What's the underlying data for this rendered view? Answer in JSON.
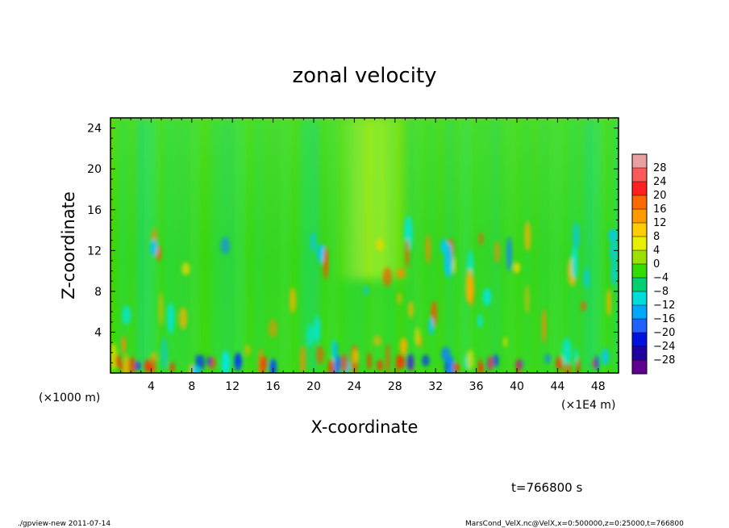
{
  "chart_data": {
    "type": "heatmap",
    "title": "zonal velocity",
    "xlabel": "X-coordinate",
    "ylabel": "Z-coordinate",
    "x_unit": "(×1E4 m)",
    "y_unit": "(×1000 m)",
    "xlim": [
      0,
      50
    ],
    "ylim": [
      0,
      25
    ],
    "x_ticks": [
      4,
      8,
      12,
      16,
      20,
      24,
      28,
      32,
      36,
      40,
      44,
      48
    ],
    "y_ticks": [
      4,
      8,
      12,
      16,
      20,
      24
    ],
    "colorbar": {
      "levels": [
        28,
        24,
        20,
        16,
        12,
        8,
        4,
        0,
        -4,
        -8,
        -12,
        -16,
        -20,
        -24,
        -28
      ],
      "colors": [
        "#e8a0a0",
        "#ff5a5a",
        "#ff2020",
        "#ff6a00",
        "#ff9900",
        "#ffcc00",
        "#e6f000",
        "#9be000",
        "#33dd00",
        "#00d070",
        "#00dcdc",
        "#00a8ff",
        "#2060ff",
        "#0010e0",
        "#2000a0",
        "#600090"
      ]
    },
    "annotation": "t=766800 s"
  },
  "footer": {
    "left": "./gpview-new  2011-07-14",
    "right": "MarsCond_VelX.nc@VelX,x=0:500000,z=0:25000,t=766800"
  }
}
